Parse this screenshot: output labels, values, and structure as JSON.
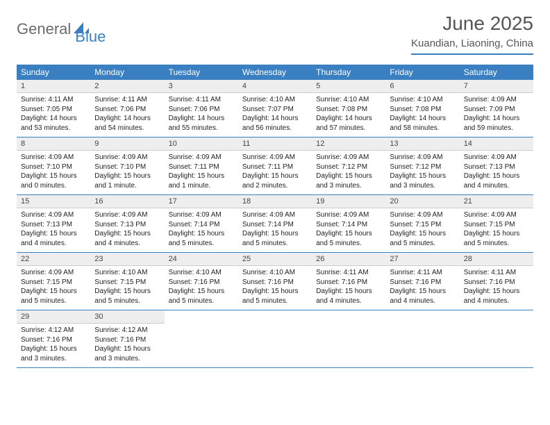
{
  "logo": {
    "text1": "General",
    "text2": "Blue"
  },
  "title": "June 2025",
  "location": "Kuandian, Liaoning, China",
  "colors": {
    "accent": "#3a7fc1",
    "header_bg_light": "#eeeeee",
    "text_gray": "#555555",
    "logo_gray": "#6b6b6b",
    "white": "#ffffff"
  },
  "day_headers": [
    "Sunday",
    "Monday",
    "Tuesday",
    "Wednesday",
    "Thursday",
    "Friday",
    "Saturday"
  ],
  "weeks": [
    [
      {
        "n": "1",
        "sr": "4:11 AM",
        "ss": "7:05 PM",
        "dl": "14 hours and 53 minutes."
      },
      {
        "n": "2",
        "sr": "4:11 AM",
        "ss": "7:06 PM",
        "dl": "14 hours and 54 minutes."
      },
      {
        "n": "3",
        "sr": "4:11 AM",
        "ss": "7:06 PM",
        "dl": "14 hours and 55 minutes."
      },
      {
        "n": "4",
        "sr": "4:10 AM",
        "ss": "7:07 PM",
        "dl": "14 hours and 56 minutes."
      },
      {
        "n": "5",
        "sr": "4:10 AM",
        "ss": "7:08 PM",
        "dl": "14 hours and 57 minutes."
      },
      {
        "n": "6",
        "sr": "4:10 AM",
        "ss": "7:08 PM",
        "dl": "14 hours and 58 minutes."
      },
      {
        "n": "7",
        "sr": "4:09 AM",
        "ss": "7:09 PM",
        "dl": "14 hours and 59 minutes."
      }
    ],
    [
      {
        "n": "8",
        "sr": "4:09 AM",
        "ss": "7:10 PM",
        "dl": "15 hours and 0 minutes."
      },
      {
        "n": "9",
        "sr": "4:09 AM",
        "ss": "7:10 PM",
        "dl": "15 hours and 1 minute."
      },
      {
        "n": "10",
        "sr": "4:09 AM",
        "ss": "7:11 PM",
        "dl": "15 hours and 1 minute."
      },
      {
        "n": "11",
        "sr": "4:09 AM",
        "ss": "7:11 PM",
        "dl": "15 hours and 2 minutes."
      },
      {
        "n": "12",
        "sr": "4:09 AM",
        "ss": "7:12 PM",
        "dl": "15 hours and 3 minutes."
      },
      {
        "n": "13",
        "sr": "4:09 AM",
        "ss": "7:12 PM",
        "dl": "15 hours and 3 minutes."
      },
      {
        "n": "14",
        "sr": "4:09 AM",
        "ss": "7:13 PM",
        "dl": "15 hours and 4 minutes."
      }
    ],
    [
      {
        "n": "15",
        "sr": "4:09 AM",
        "ss": "7:13 PM",
        "dl": "15 hours and 4 minutes."
      },
      {
        "n": "16",
        "sr": "4:09 AM",
        "ss": "7:13 PM",
        "dl": "15 hours and 4 minutes."
      },
      {
        "n": "17",
        "sr": "4:09 AM",
        "ss": "7:14 PM",
        "dl": "15 hours and 5 minutes."
      },
      {
        "n": "18",
        "sr": "4:09 AM",
        "ss": "7:14 PM",
        "dl": "15 hours and 5 minutes."
      },
      {
        "n": "19",
        "sr": "4:09 AM",
        "ss": "7:14 PM",
        "dl": "15 hours and 5 minutes."
      },
      {
        "n": "20",
        "sr": "4:09 AM",
        "ss": "7:15 PM",
        "dl": "15 hours and 5 minutes."
      },
      {
        "n": "21",
        "sr": "4:09 AM",
        "ss": "7:15 PM",
        "dl": "15 hours and 5 minutes."
      }
    ],
    [
      {
        "n": "22",
        "sr": "4:09 AM",
        "ss": "7:15 PM",
        "dl": "15 hours and 5 minutes."
      },
      {
        "n": "23",
        "sr": "4:10 AM",
        "ss": "7:15 PM",
        "dl": "15 hours and 5 minutes."
      },
      {
        "n": "24",
        "sr": "4:10 AM",
        "ss": "7:16 PM",
        "dl": "15 hours and 5 minutes."
      },
      {
        "n": "25",
        "sr": "4:10 AM",
        "ss": "7:16 PM",
        "dl": "15 hours and 5 minutes."
      },
      {
        "n": "26",
        "sr": "4:11 AM",
        "ss": "7:16 PM",
        "dl": "15 hours and 4 minutes."
      },
      {
        "n": "27",
        "sr": "4:11 AM",
        "ss": "7:16 PM",
        "dl": "15 hours and 4 minutes."
      },
      {
        "n": "28",
        "sr": "4:11 AM",
        "ss": "7:16 PM",
        "dl": "15 hours and 4 minutes."
      }
    ],
    [
      {
        "n": "29",
        "sr": "4:12 AM",
        "ss": "7:16 PM",
        "dl": "15 hours and 3 minutes."
      },
      {
        "n": "30",
        "sr": "4:12 AM",
        "ss": "7:16 PM",
        "dl": "15 hours and 3 minutes."
      },
      null,
      null,
      null,
      null,
      null
    ]
  ],
  "labels": {
    "sunrise": "Sunrise:",
    "sunset": "Sunset:",
    "daylight": "Daylight:"
  }
}
